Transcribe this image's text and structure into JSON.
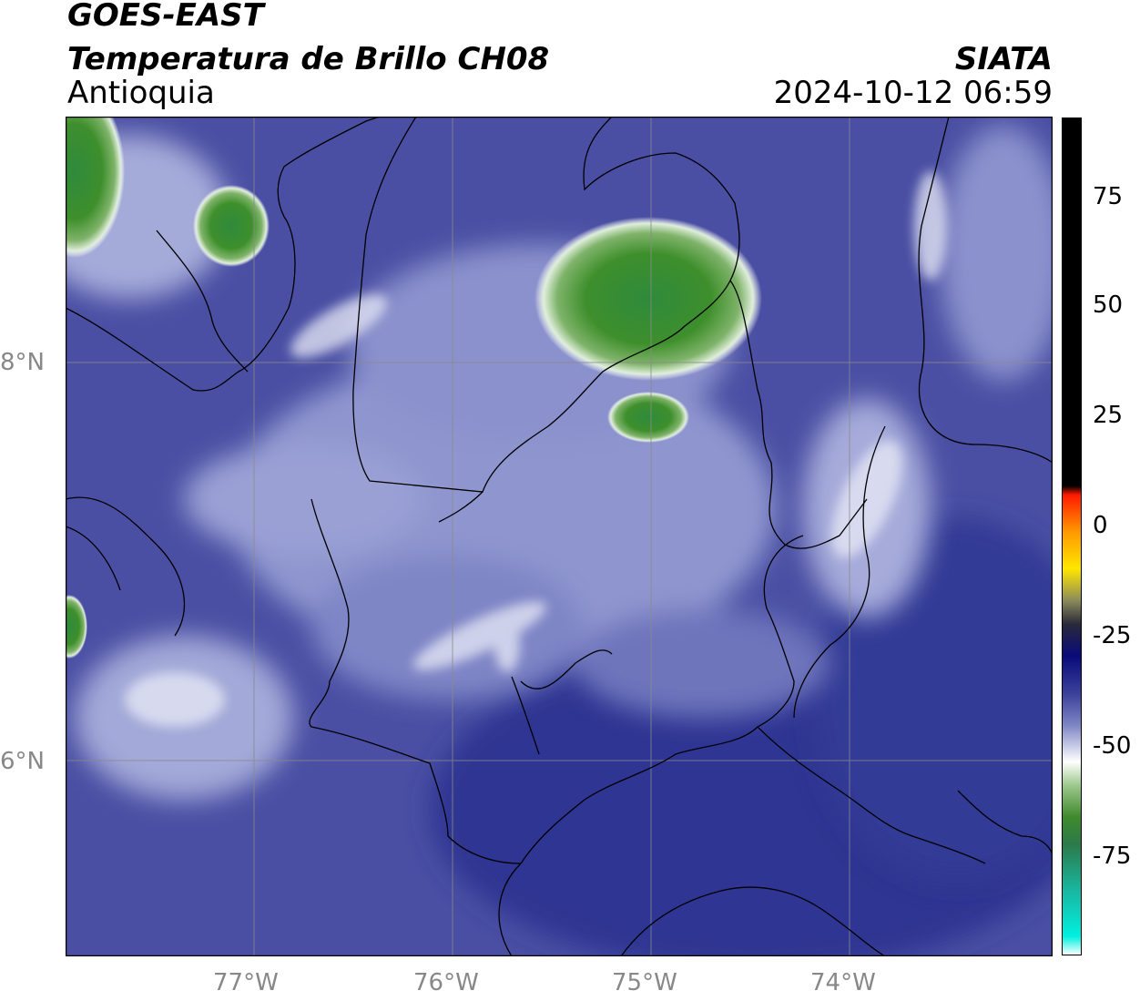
{
  "header": {
    "title_line1": "GOES-EAST",
    "title_line2": "Temperatura de Brillo CH08",
    "brand": "SIATA",
    "region": "Antioquia",
    "datetime": "2024-10-12 06:59"
  },
  "axes": {
    "x_ticks": [
      "77°W",
      "76°W",
      "75°W",
      "74°W"
    ],
    "y_ticks": [
      "8°N",
      "6°N"
    ]
  },
  "colorbar": {
    "ticks": [
      "75",
      "50",
      "25",
      "0",
      "-25",
      "-50",
      "-75"
    ],
    "stops": [
      {
        "v": 90,
        "color": "#000000"
      },
      {
        "v": 10,
        "color": "#000000"
      },
      {
        "v": 8,
        "color": "#ff1a00"
      },
      {
        "v": 0,
        "color": "#ff9900"
      },
      {
        "v": -8,
        "color": "#ffe600"
      },
      {
        "v": -15,
        "color": "#8a8a5a"
      },
      {
        "v": -20,
        "color": "#2a2a3a"
      },
      {
        "v": -27,
        "color": "#0a0a7a"
      },
      {
        "v": -35,
        "color": "#3a3f9a"
      },
      {
        "v": -42,
        "color": "#7e85c4"
      },
      {
        "v": -50,
        "color": "#ffffff"
      },
      {
        "v": -55,
        "color": "#9fc98f"
      },
      {
        "v": -62,
        "color": "#3f8a2c"
      },
      {
        "v": -68,
        "color": "#2c7a4a"
      },
      {
        "v": -78,
        "color": "#18b7a0"
      },
      {
        "v": -88,
        "color": "#00f0e0"
      },
      {
        "v": -92,
        "color": "#ffffff"
      }
    ]
  },
  "colors": {
    "background_cloud_free": "#4a4fa3",
    "cold_cloud": "#4e9a3a",
    "border_lines": "#000000",
    "grid": "#8a8a8a"
  }
}
